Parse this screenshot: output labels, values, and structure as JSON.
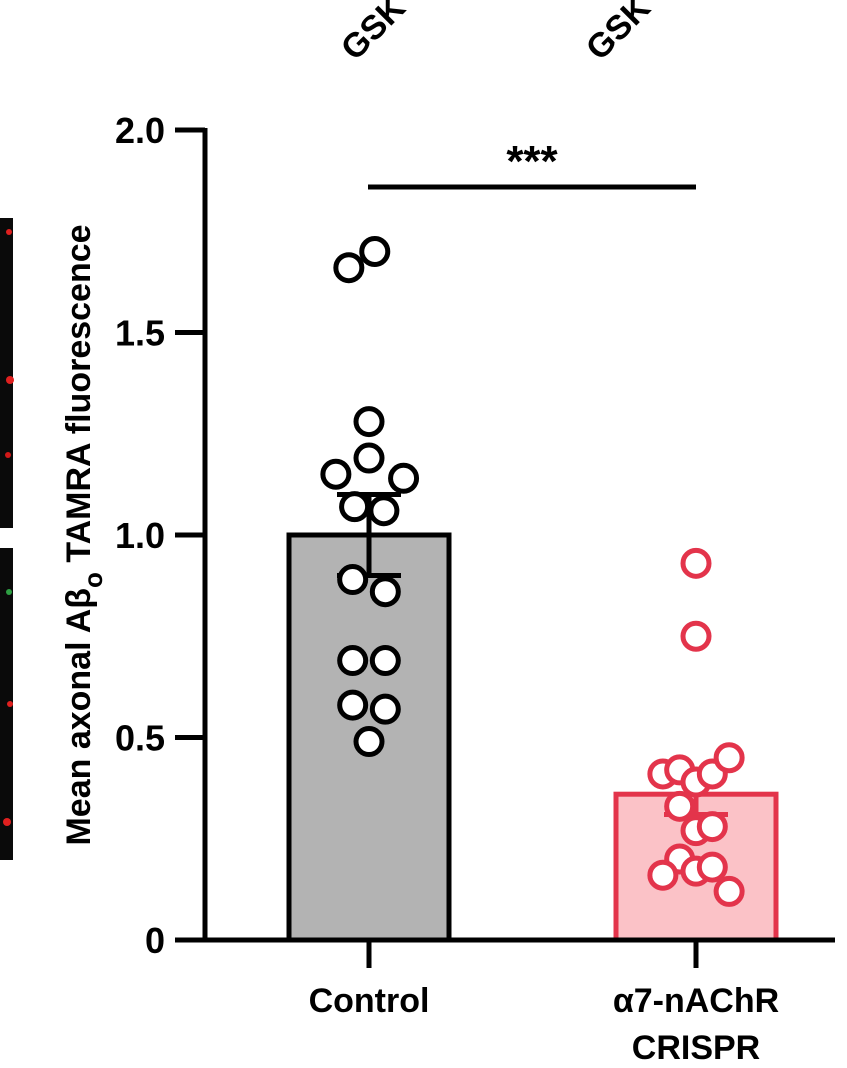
{
  "chart_data": {
    "type": "bar",
    "ylabel_main": "Mean axonal Aβ",
    "ylabel_sub": "o",
    "ylabel_rest": " TAMRA fluorescence",
    "ylim": [
      0,
      2.0
    ],
    "yticks": [
      {
        "value": 0,
        "label": "0"
      },
      {
        "value": 0.5,
        "label": "0.5"
      },
      {
        "value": 1.0,
        "label": "1.0"
      },
      {
        "value": 1.5,
        "label": "1.5"
      },
      {
        "value": 2.0,
        "label": "2.0"
      }
    ],
    "top_labels": [
      "GSK",
      "GSK"
    ],
    "significance": "***",
    "bars": [
      {
        "category_lines": [
          "Control"
        ],
        "mean": 1.0,
        "error_low": 0.9,
        "error_high": 1.1,
        "fill": "#b3b3b3",
        "stroke": "#000000",
        "points": [
          {
            "x": -0.42,
            "y": 1.66
          },
          {
            "x": 0.12,
            "y": 1.7
          },
          {
            "x": 0.0,
            "y": 1.28
          },
          {
            "x": -0.69,
            "y": 1.15
          },
          {
            "x": 0.0,
            "y": 1.19
          },
          {
            "x": 0.72,
            "y": 1.14
          },
          {
            "x": -0.3,
            "y": 1.07
          },
          {
            "x": 0.31,
            "y": 1.06
          },
          {
            "x": -0.34,
            "y": 0.89
          },
          {
            "x": 0.34,
            "y": 0.86
          },
          {
            "x": -0.34,
            "y": 0.69
          },
          {
            "x": 0.34,
            "y": 0.69
          },
          {
            "x": -0.34,
            "y": 0.58
          },
          {
            "x": 0.34,
            "y": 0.57
          },
          {
            "x": 0.0,
            "y": 0.49
          }
        ]
      },
      {
        "category_lines": [
          "α7-nAChR",
          "CRISPR"
        ],
        "mean": 0.36,
        "error_low": 0.31,
        "error_high": 0.42,
        "fill": "#fbc2c7",
        "stroke": "#e3344b",
        "points": [
          {
            "x": 0.0,
            "y": 0.93
          },
          {
            "x": 0.0,
            "y": 0.75
          },
          {
            "x": -0.69,
            "y": 0.41
          },
          {
            "x": -0.34,
            "y": 0.42
          },
          {
            "x": 0.0,
            "y": 0.39
          },
          {
            "x": 0.34,
            "y": 0.41
          },
          {
            "x": 0.69,
            "y": 0.45
          },
          {
            "x": -0.34,
            "y": 0.33
          },
          {
            "x": 0.0,
            "y": 0.27
          },
          {
            "x": 0.34,
            "y": 0.28
          },
          {
            "x": -0.34,
            "y": 0.2
          },
          {
            "x": 0.0,
            "y": 0.17
          },
          {
            "x": 0.34,
            "y": 0.18
          },
          {
            "x": -0.69,
            "y": 0.16
          },
          {
            "x": 0.69,
            "y": 0.12
          }
        ]
      }
    ]
  }
}
